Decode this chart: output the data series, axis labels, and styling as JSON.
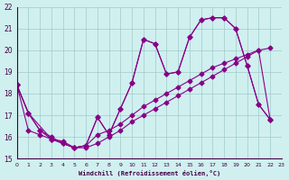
{
  "xlabel": "Windchill (Refroidissement éolien,°C)",
  "bg_color": "#d0f0f0",
  "grid_color": "#a0c8c8",
  "line_color": "#880088",
  "xlim": [
    0,
    23
  ],
  "ylim": [
    15,
    22
  ],
  "yticks": [
    15,
    16,
    17,
    18,
    19,
    20,
    21,
    22
  ],
  "xticks": [
    0,
    1,
    2,
    3,
    4,
    5,
    6,
    7,
    8,
    9,
    10,
    11,
    12,
    13,
    14,
    15,
    16,
    17,
    18,
    19,
    20,
    21,
    22,
    23
  ],
  "series1_x": [
    0,
    1,
    3,
    4,
    5,
    6,
    7,
    8,
    9,
    10,
    11,
    12,
    13,
    14,
    15,
    16,
    17,
    18,
    19,
    20,
    21,
    22
  ],
  "series1_y": [
    18.4,
    17.1,
    15.9,
    15.7,
    15.5,
    15.6,
    16.9,
    16.1,
    17.3,
    18.5,
    20.5,
    20.3,
    18.9,
    19.0,
    20.6,
    21.4,
    21.5,
    21.5,
    21.0,
    19.3,
    17.5,
    16.8
  ],
  "series2_x": [
    0,
    1,
    2,
    3,
    4,
    5,
    6,
    7,
    8,
    9,
    10,
    11,
    12,
    13,
    14,
    15,
    16,
    17,
    18,
    19,
    20,
    21,
    22
  ],
  "series2_y": [
    18.4,
    17.1,
    16.3,
    15.9,
    15.7,
    15.5,
    15.6,
    16.9,
    16.1,
    17.3,
    18.5,
    20.5,
    20.3,
    18.9,
    19.0,
    20.6,
    21.4,
    21.5,
    21.5,
    21.0,
    19.3,
    17.5,
    16.8
  ],
  "series3_x": [
    0,
    1,
    2,
    3,
    4,
    5,
    6,
    7,
    8,
    9,
    10,
    11,
    12,
    13,
    14,
    15,
    16,
    17,
    18,
    19,
    20,
    21,
    22
  ],
  "series3_y": [
    18.4,
    16.3,
    16.1,
    15.9,
    15.8,
    15.5,
    15.6,
    16.1,
    16.3,
    16.6,
    17.0,
    17.4,
    17.7,
    18.0,
    18.3,
    18.6,
    18.9,
    19.2,
    19.4,
    19.6,
    19.8,
    20.0,
    20.1
  ],
  "series4_x": [
    0,
    1,
    2,
    3,
    4,
    5,
    6,
    7,
    8,
    9,
    10,
    11,
    12,
    13,
    14,
    15,
    16,
    17,
    18,
    19,
    20,
    21,
    22
  ],
  "series4_y": [
    18.4,
    17.1,
    16.3,
    16.0,
    15.7,
    15.5,
    15.5,
    15.7,
    16.0,
    16.3,
    16.7,
    17.0,
    17.3,
    17.6,
    17.9,
    18.2,
    18.5,
    18.8,
    19.1,
    19.4,
    19.7,
    20.0,
    16.8
  ]
}
